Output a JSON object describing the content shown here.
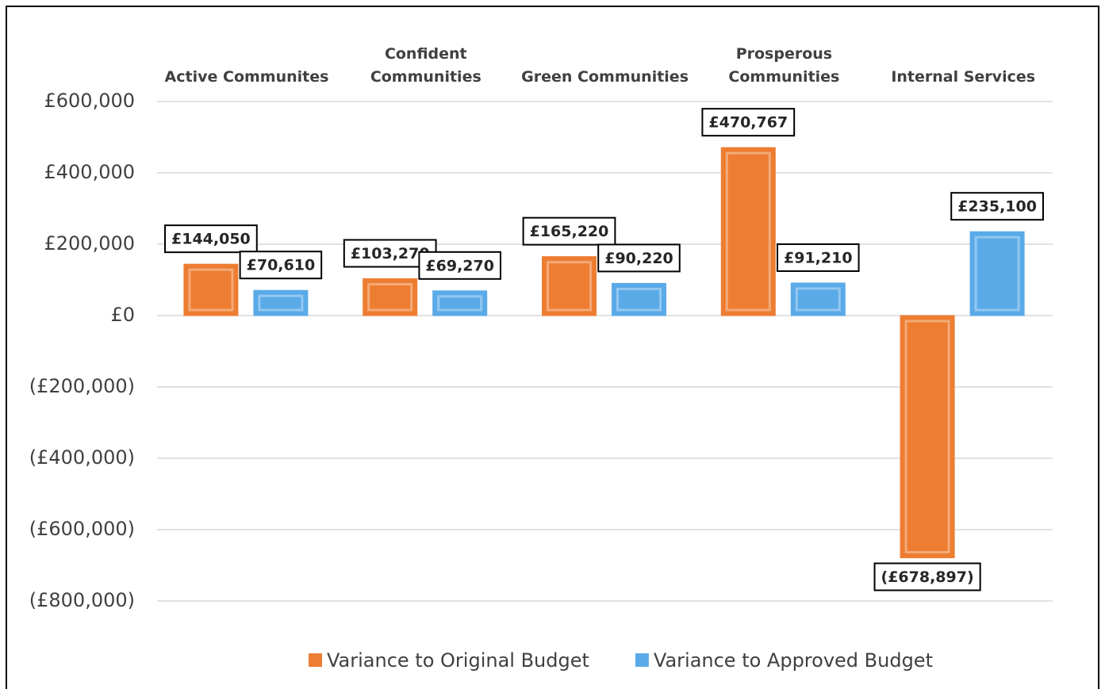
{
  "chart_data": {
    "type": "bar",
    "categories": [
      "Active Communites",
      "Confident\nCommunities",
      "Green Communities",
      "Prosperous\nCommunities",
      "Internal Services"
    ],
    "series": [
      {
        "name": "Variance to Original Budget",
        "color": "#ed7d31",
        "values": [
          144050,
          103270,
          165220,
          470767,
          -678897
        ],
        "value_labels": [
          "£144,050",
          "£103,270",
          "£165,220",
          "£470,767",
          "(£678,897)"
        ]
      },
      {
        "name": "Variance to Approved Budget",
        "color": "#5aaae8",
        "values": [
          70610,
          69270,
          90220,
          91210,
          235100
        ],
        "value_labels": [
          "£70,610",
          "£69,270",
          "£90,220",
          "£91,210",
          "£235,100"
        ]
      }
    ],
    "ylim": [
      -800000,
      600000
    ],
    "yticks": [
      {
        "value": 600000,
        "label": "£600,000"
      },
      {
        "value": 400000,
        "label": "£400,000"
      },
      {
        "value": 200000,
        "label": "£200,000"
      },
      {
        "value": 0,
        "label": "£0"
      },
      {
        "value": -200000,
        "label": "(£200,000)"
      },
      {
        "value": -400000,
        "label": "(£400,000)"
      },
      {
        "value": -600000,
        "label": "(£600,000)"
      },
      {
        "value": -800000,
        "label": "(£800,000)"
      }
    ],
    "grid": true,
    "legend": "bottom"
  }
}
